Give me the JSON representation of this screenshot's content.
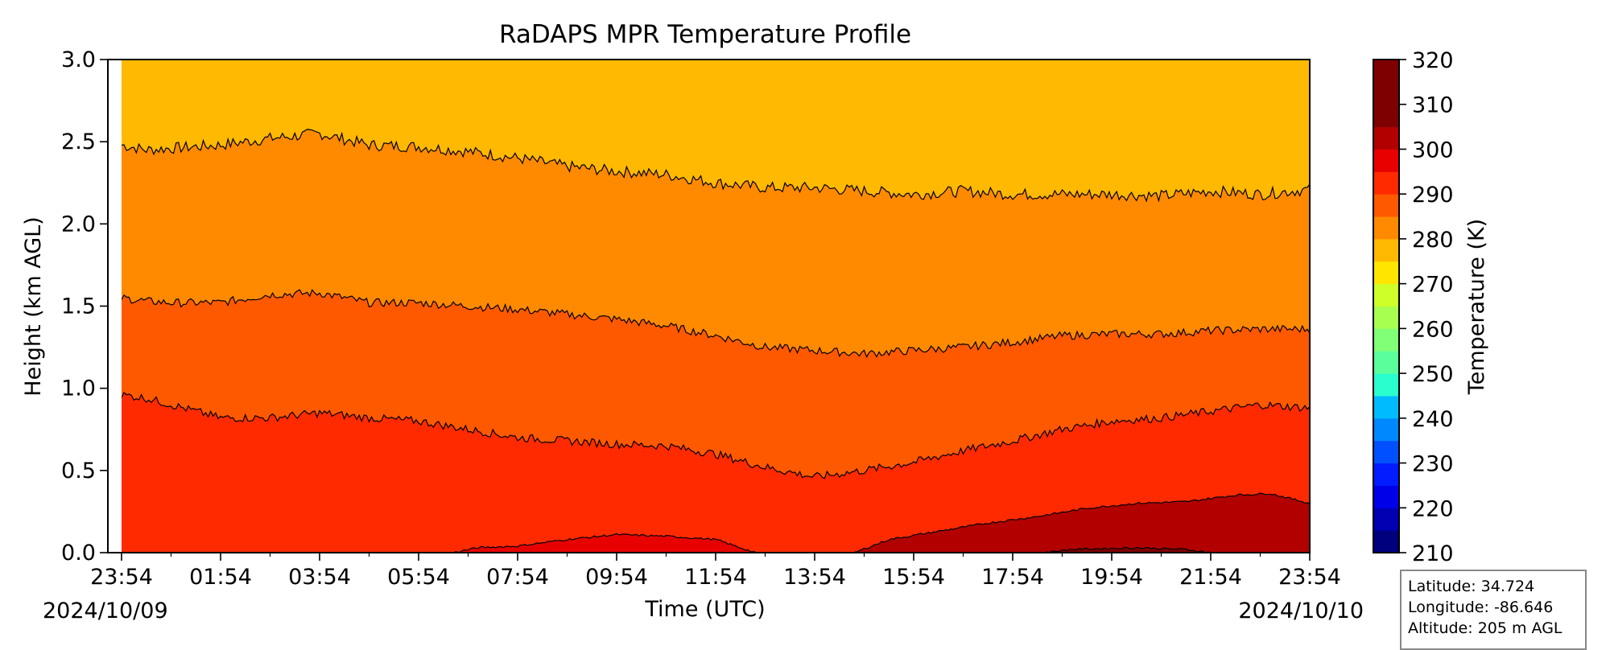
{
  "chart_data": {
    "type": "contour",
    "title": "RaDAPS MPR Temperature Profile",
    "xlabel": "Time (UTC)",
    "ylabel": "Height (km AGL)",
    "x_ticks": [
      "23:54",
      "01:54",
      "03:54",
      "05:54",
      "07:54",
      "09:54",
      "11:54",
      "13:54",
      "15:54",
      "17:54",
      "19:54",
      "21:54",
      "23:54"
    ],
    "x_start_date": "2024/10/09",
    "x_end_date": "2024/10/10",
    "x_hours": [
      0,
      24
    ],
    "ylim": [
      0,
      3.0
    ],
    "y_ticks": [
      "0.0",
      "0.5",
      "1.0",
      "1.5",
      "2.0",
      "2.5",
      "3.0"
    ],
    "colorbar": {
      "label": "Temperature (K)",
      "range": [
        210,
        320
      ],
      "step": 5,
      "ticks": [
        "210",
        "220",
        "230",
        "240",
        "250",
        "260",
        "270",
        "280",
        "290",
        "300",
        "310",
        "320"
      ],
      "colors": [
        "#00007f",
        "#0000b2",
        "#0000e8",
        "#001cff",
        "#0050ff",
        "#0088ff",
        "#00bcff",
        "#29ffce",
        "#5aff9c",
        "#80ff77",
        "#a7ff50",
        "#ceff29",
        "#ffe600",
        "#ffb900",
        "#ff8a00",
        "#ff5900",
        "#ff2a00",
        "#e80000",
        "#b20000",
        "#7f0000",
        "#7f0000",
        "#7f0000"
      ]
    },
    "contour_lines": [
      {
        "level": 280,
        "height_km": [
          [
            0,
            2.48
          ],
          [
            0.5,
            2.45
          ],
          [
            1,
            2.46
          ],
          [
            2,
            2.48
          ],
          [
            3,
            2.52
          ],
          [
            4,
            2.55
          ],
          [
            5,
            2.48
          ],
          [
            6,
            2.47
          ],
          [
            7,
            2.44
          ],
          [
            8,
            2.4
          ],
          [
            9,
            2.35
          ],
          [
            10,
            2.32
          ],
          [
            11,
            2.3
          ],
          [
            12,
            2.25
          ],
          [
            13,
            2.22
          ],
          [
            14,
            2.22
          ],
          [
            15,
            2.2
          ],
          [
            16,
            2.18
          ],
          [
            17,
            2.2
          ],
          [
            18,
            2.18
          ],
          [
            19,
            2.18
          ],
          [
            20,
            2.18
          ],
          [
            21,
            2.17
          ],
          [
            22,
            2.2
          ],
          [
            23,
            2.18
          ],
          [
            24,
            2.21
          ]
        ]
      },
      {
        "level": 285,
        "height_km": [
          [
            0,
            1.55
          ],
          [
            0.5,
            1.53
          ],
          [
            1,
            1.52
          ],
          [
            2,
            1.52
          ],
          [
            3,
            1.57
          ],
          [
            4,
            1.58
          ],
          [
            5,
            1.52
          ],
          [
            6,
            1.52
          ],
          [
            7,
            1.5
          ],
          [
            8,
            1.48
          ],
          [
            9,
            1.45
          ],
          [
            10,
            1.42
          ],
          [
            11,
            1.38
          ],
          [
            12,
            1.32
          ],
          [
            13,
            1.25
          ],
          [
            14,
            1.23
          ],
          [
            15,
            1.21
          ],
          [
            16,
            1.23
          ],
          [
            17,
            1.25
          ],
          [
            18,
            1.28
          ],
          [
            19,
            1.32
          ],
          [
            20,
            1.33
          ],
          [
            21,
            1.33
          ],
          [
            22,
            1.35
          ],
          [
            23,
            1.36
          ],
          [
            24,
            1.36
          ]
        ]
      },
      {
        "level": 290,
        "height_km": [
          [
            0,
            0.96
          ],
          [
            0.5,
            0.94
          ],
          [
            1,
            0.9
          ],
          [
            2,
            0.82
          ],
          [
            3,
            0.82
          ],
          [
            4,
            0.85
          ],
          [
            5,
            0.82
          ],
          [
            6,
            0.8
          ],
          [
            7,
            0.75
          ],
          [
            8,
            0.7
          ],
          [
            9,
            0.68
          ],
          [
            10,
            0.66
          ],
          [
            11,
            0.65
          ],
          [
            12,
            0.6
          ],
          [
            13,
            0.52
          ],
          [
            14,
            0.46
          ],
          [
            15,
            0.5
          ],
          [
            16,
            0.55
          ],
          [
            17,
            0.62
          ],
          [
            18,
            0.68
          ],
          [
            19,
            0.75
          ],
          [
            20,
            0.8
          ],
          [
            21,
            0.82
          ],
          [
            22,
            0.86
          ],
          [
            23,
            0.9
          ],
          [
            24,
            0.88
          ]
        ]
      },
      {
        "level": 295,
        "height_km": [
          [
            6.7,
            0.0
          ],
          [
            7.2,
            0.03
          ],
          [
            8,
            0.04
          ],
          [
            9,
            0.08
          ],
          [
            10,
            0.11
          ],
          [
            11,
            0.1
          ],
          [
            12,
            0.08
          ],
          [
            12.8,
            0.0
          ]
        ]
      },
      {
        "level": 300,
        "height_km": [
          [
            14.8,
            0.0
          ],
          [
            15.5,
            0.08
          ],
          [
            16.5,
            0.13
          ],
          [
            17.5,
            0.18
          ],
          [
            18.5,
            0.22
          ],
          [
            19.5,
            0.27
          ],
          [
            20.5,
            0.3
          ],
          [
            21.5,
            0.31
          ],
          [
            22.5,
            0.35
          ],
          [
            23.2,
            0.36
          ],
          [
            24,
            0.3
          ]
        ]
      },
      {
        "level": 305,
        "height_km": [
          [
            18.6,
            0.0
          ],
          [
            19.2,
            0.02
          ],
          [
            20.5,
            0.03
          ],
          [
            21.5,
            0.02
          ],
          [
            22,
            0.0
          ]
        ]
      }
    ],
    "surface_spikes_note": ""
  },
  "site_info": {
    "latitude": "Latitude: 34.724",
    "longitude": "Longitude: -86.646",
    "altitude": "Altitude: 205 m AGL"
  }
}
